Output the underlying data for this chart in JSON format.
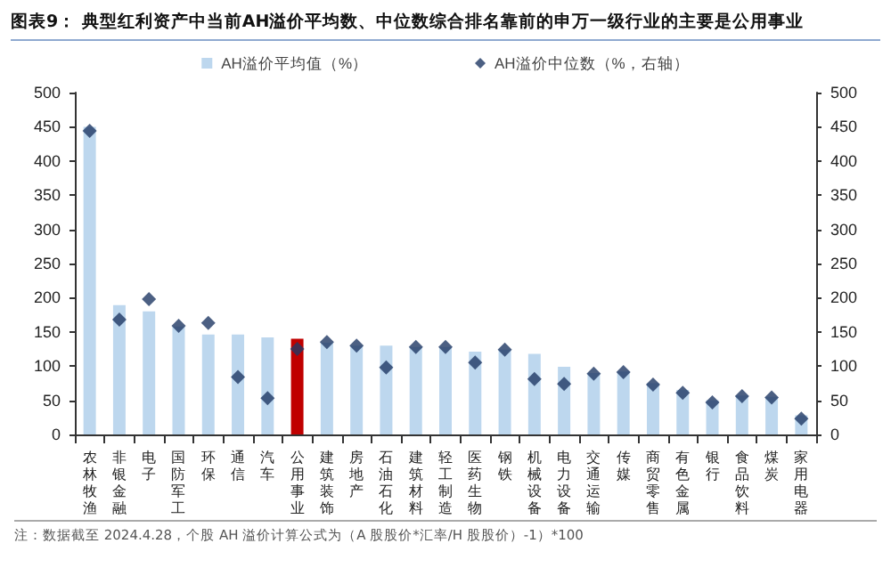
{
  "chart_data": {
    "type": "bar",
    "title": "图表9： 典型红利资产中当前AH溢价平均数、中位数综合排名靠前的申万一级行业的主要是公用事业",
    "categories": [
      "农林牧渔",
      "非银金融",
      "电子",
      "国防军工",
      "环保",
      "通信",
      "汽车",
      "公用事业",
      "建筑装饰",
      "房地产",
      "石油石化",
      "建筑材料",
      "轻工制造",
      "医药生物",
      "钢铁",
      "机械设备",
      "电力设备",
      "交通运输",
      "传媒",
      "商贸零售",
      "有色金属",
      "银行",
      "食品饮料",
      "煤炭",
      "家用电器"
    ],
    "series": [
      {
        "name": "AH溢价平均值（%）",
        "color": "#bdd7ee",
        "colors": [
          "#bdd7ee",
          "#bdd7ee",
          "#bdd7ee",
          "#bdd7ee",
          "#bdd7ee",
          "#bdd7ee",
          "#bdd7ee",
          "#c00000",
          "#bdd7ee",
          "#bdd7ee",
          "#bdd7ee",
          "#bdd7ee",
          "#bdd7ee",
          "#bdd7ee",
          "#bdd7ee",
          "#bdd7ee",
          "#bdd7ee",
          "#bdd7ee",
          "#bdd7ee",
          "#bdd7ee",
          "#bdd7ee",
          "#bdd7ee",
          "#bdd7ee",
          "#bdd7ee",
          "#bdd7ee"
        ],
        "values": [
          450,
          189,
          180,
          158,
          146,
          146,
          142,
          140,
          134,
          130,
          130,
          128,
          128,
          121,
          124,
          118,
          99,
          90,
          92,
          75,
          65,
          50,
          57,
          55,
          28
        ]
      },
      {
        "name": "AH溢价中位数（%，右轴）",
        "type": "scatter",
        "axis": "y2",
        "marker": "diamond",
        "color": "#1f3864",
        "values": [
          444,
          168,
          198,
          159,
          163,
          84,
          53,
          125,
          135,
          130,
          98,
          128,
          128,
          105,
          124,
          81,
          74,
          89,
          91,
          73,
          61,
          47,
          56,
          54,
          23
        ]
      }
    ],
    "ylim": [
      0,
      500
    ],
    "yticks": [
      0,
      50,
      100,
      150,
      200,
      250,
      300,
      350,
      400,
      450,
      500
    ],
    "y2lim": [
      0,
      500
    ],
    "y2ticks": [
      0,
      50,
      100,
      150,
      200,
      250,
      300,
      350,
      400,
      450,
      500
    ],
    "grid": false,
    "legend": "top",
    "annotations": [
      "注：数据截至 2024.4.28，个股 AH 溢价计算公式为（A 股股价*汇率/H 股股价）-1）*100"
    ]
  }
}
